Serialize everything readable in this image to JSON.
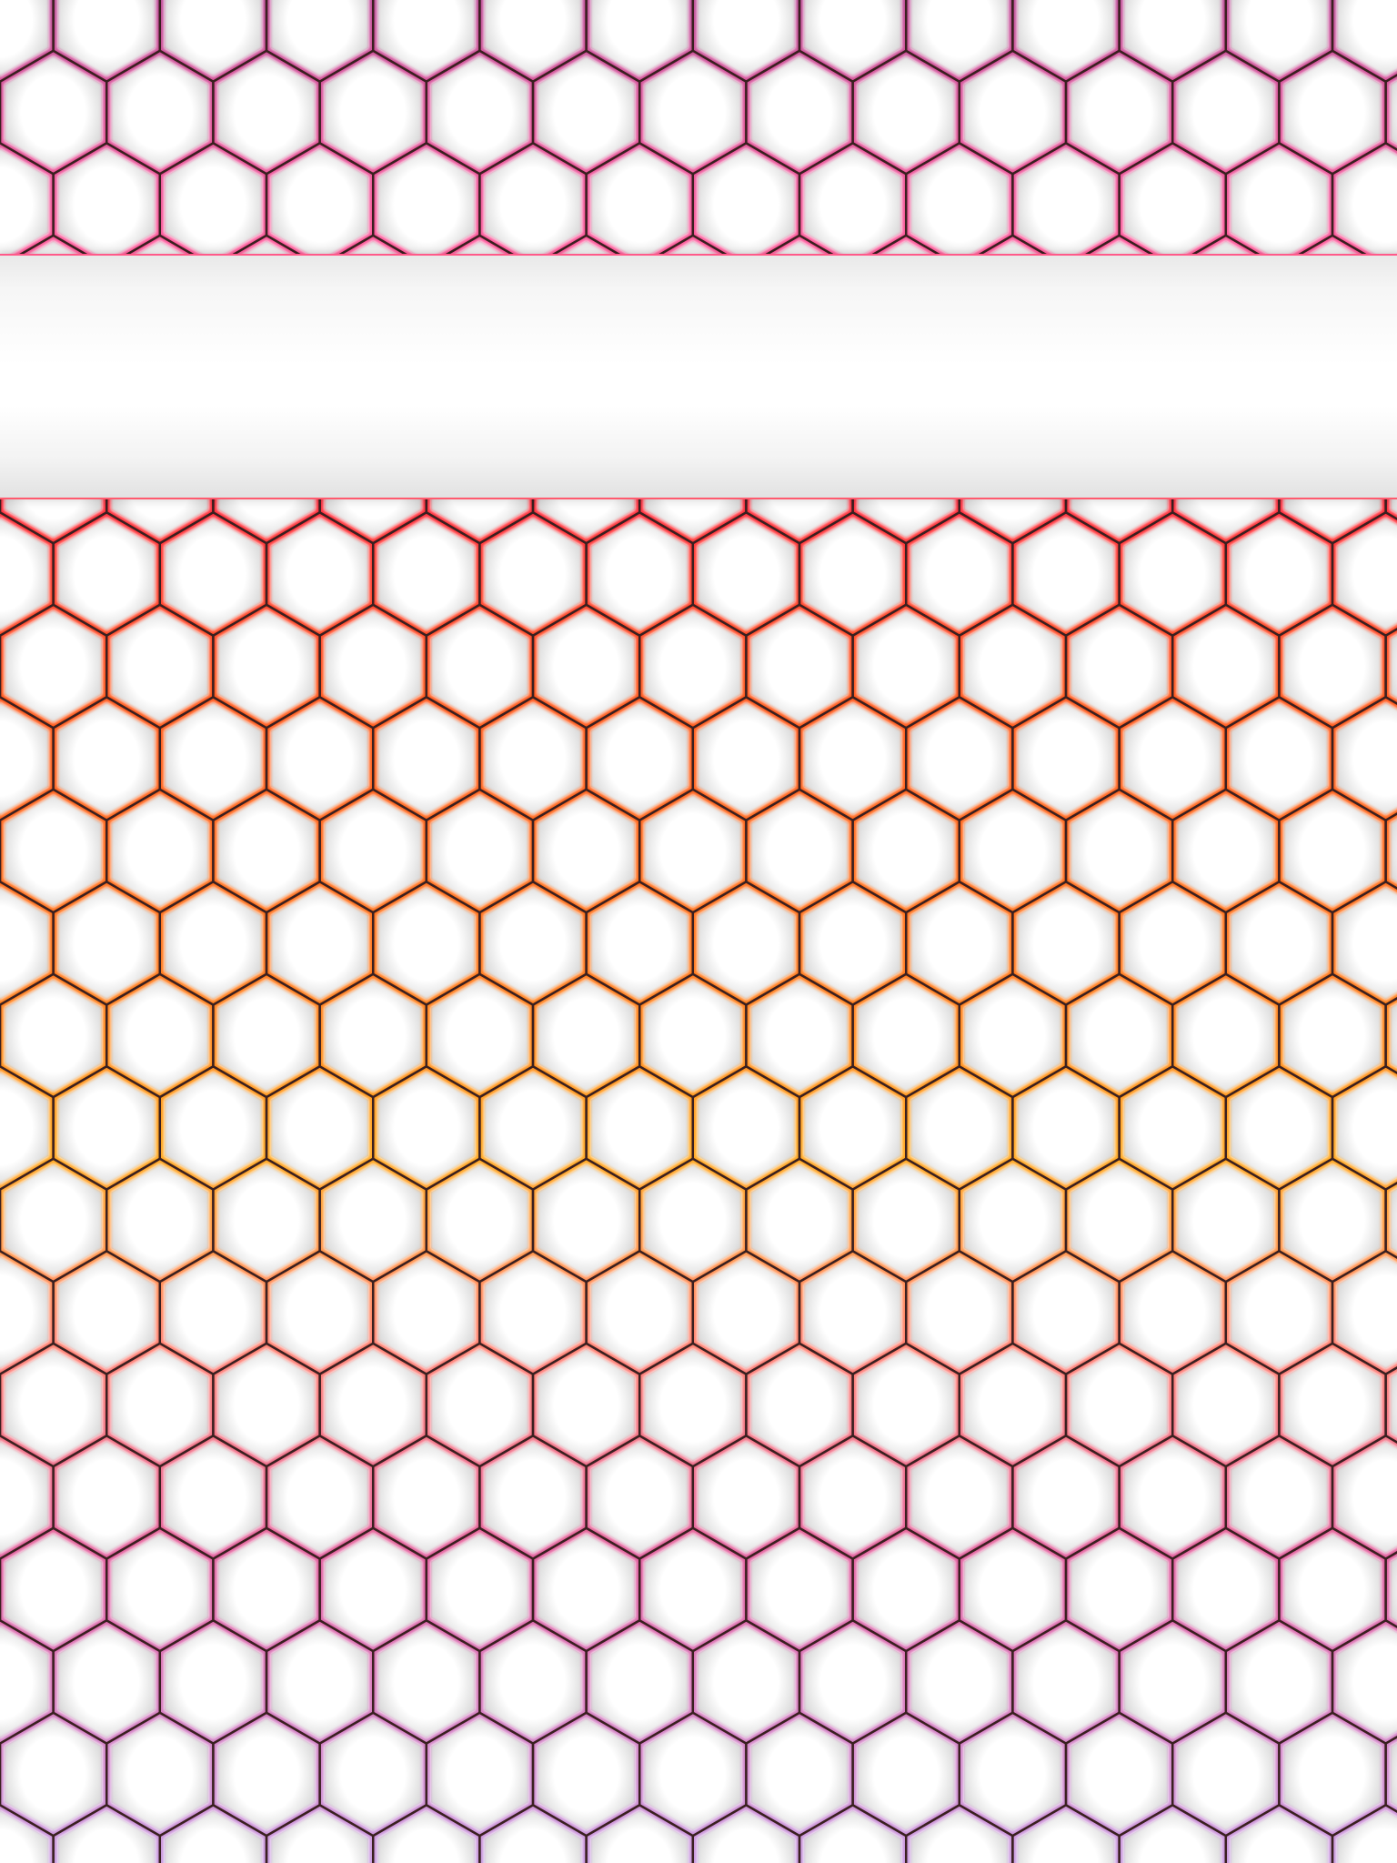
{
  "banner": {
    "text": ""
  },
  "pattern": {
    "cell_shape": "hexagon",
    "outline_color": "#3a2020",
    "cell_fill_center": "#ffffff",
    "cell_fill_edge": "#cfcfcf",
    "glow_colors": {
      "top_section": [
        "#c0509a",
        "#ff5a9a"
      ],
      "bottom_section": [
        "#ff3040",
        "#ff6a1a",
        "#ff8c1a",
        "#ffa820",
        "#ff8070",
        "#e060a0",
        "#c89ae0"
      ]
    }
  }
}
